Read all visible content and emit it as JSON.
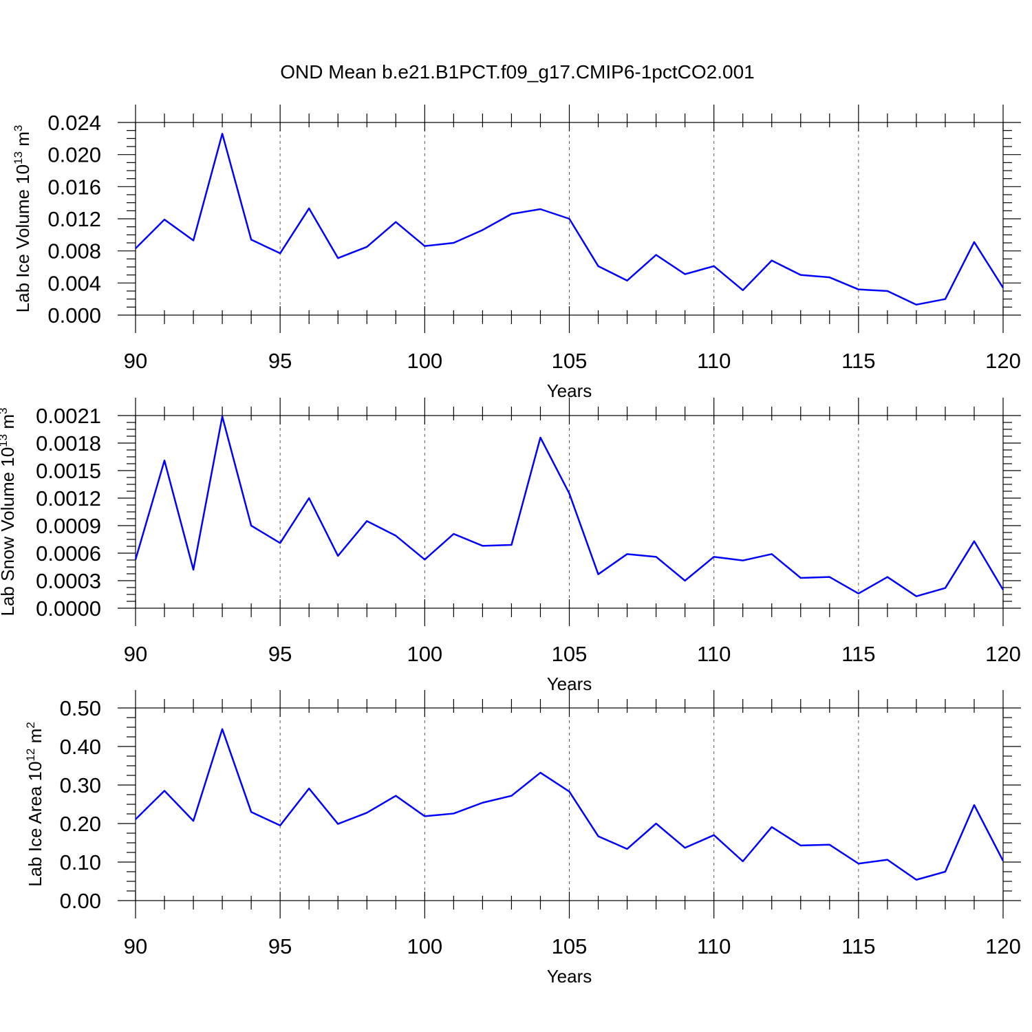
{
  "title": "OND Mean b.e21.B1PCT.f09_g17.CMIP6-1pctCO2.001",
  "colors": {
    "series": "#0000ff",
    "axis": "#000000",
    "grid": "#555555"
  },
  "chart_data": [
    {
      "type": "line",
      "ylabel": {
        "main": "Lab Ice Volume 10",
        "sup1": "13",
        "unit": " m",
        "sup2": "3"
      },
      "xlabel": "Years",
      "xlim": [
        90,
        120
      ],
      "ylim": [
        0,
        0.024
      ],
      "x_ticks": [
        "90",
        "95",
        "100",
        "105",
        "110",
        "115",
        "120"
      ],
      "y_ticks": [
        "0.000",
        "0.004",
        "0.008",
        "0.012",
        "0.016",
        "0.020",
        "0.024"
      ],
      "grid": "vertical dashed at major x ticks",
      "x": [
        90,
        91,
        92,
        93,
        94,
        95,
        96,
        97,
        98,
        99,
        100,
        101,
        102,
        103,
        104,
        105,
        106,
        107,
        108,
        109,
        110,
        111,
        112,
        113,
        114,
        115,
        116,
        117,
        118,
        119,
        120
      ],
      "series": [
        {
          "values": [
            0.0083,
            0.0119,
            0.0093,
            0.0226,
            0.0094,
            0.0077,
            0.0133,
            0.0071,
            0.0085,
            0.0116,
            0.0086,
            0.009,
            0.0106,
            0.0126,
            0.0132,
            0.012,
            0.0061,
            0.0043,
            0.0075,
            0.0051,
            0.0061,
            0.0031,
            0.0068,
            0.005,
            0.0047,
            0.0032,
            0.003,
            0.0013,
            0.002,
            0.0091,
            0.0034
          ]
        }
      ]
    },
    {
      "type": "line",
      "ylabel": {
        "main": "Lab Snow Volume 10",
        "sup1": "13",
        "unit": " m",
        "sup2": "3"
      },
      "xlabel": "Years",
      "xlim": [
        90,
        120
      ],
      "ylim": [
        0,
        0.0021
      ],
      "x_ticks": [
        "90",
        "95",
        "100",
        "105",
        "110",
        "115",
        "120"
      ],
      "y_ticks": [
        "0.0000",
        "0.0003",
        "0.0006",
        "0.0009",
        "0.0012",
        "0.0015",
        "0.0018",
        "0.0021"
      ],
      "grid": "vertical dashed at major x ticks",
      "x": [
        90,
        91,
        92,
        93,
        94,
        95,
        96,
        97,
        98,
        99,
        100,
        101,
        102,
        103,
        104,
        105,
        106,
        107,
        108,
        109,
        110,
        111,
        112,
        113,
        114,
        115,
        116,
        117,
        118,
        119,
        120
      ],
      "series": [
        {
          "values": [
            0.00053,
            0.00161,
            0.00042,
            0.00209,
            0.0009,
            0.00071,
            0.0012,
            0.00057,
            0.00095,
            0.00079,
            0.00053,
            0.00081,
            0.00068,
            0.00069,
            0.00186,
            0.00125,
            0.00037,
            0.00059,
            0.00056,
            0.0003,
            0.00056,
            0.00052,
            0.00059,
            0.00033,
            0.00034,
            0.00016,
            0.00034,
            0.00013,
            0.00022,
            0.00073,
            0.0002
          ]
        }
      ]
    },
    {
      "type": "line",
      "ylabel": {
        "main": "Lab Ice Area 10",
        "sup1": "12",
        "unit": " m",
        "sup2": "2"
      },
      "xlabel": "Years",
      "xlim": [
        90,
        120
      ],
      "ylim": [
        0,
        0.5
      ],
      "x_ticks": [
        "90",
        "95",
        "100",
        "105",
        "110",
        "115",
        "120"
      ],
      "y_ticks": [
        "0.00",
        "0.10",
        "0.20",
        "0.30",
        "0.40",
        "0.50"
      ],
      "grid": "vertical dashed at major x ticks",
      "x": [
        90,
        91,
        92,
        93,
        94,
        95,
        96,
        97,
        98,
        99,
        100,
        101,
        102,
        103,
        104,
        105,
        106,
        107,
        108,
        109,
        110,
        111,
        112,
        113,
        114,
        115,
        116,
        117,
        118,
        119,
        120
      ],
      "series": [
        {
          "values": [
            0.211,
            0.285,
            0.207,
            0.445,
            0.23,
            0.195,
            0.291,
            0.199,
            0.228,
            0.272,
            0.219,
            0.226,
            0.254,
            0.272,
            0.332,
            0.283,
            0.167,
            0.134,
            0.2,
            0.137,
            0.17,
            0.102,
            0.191,
            0.143,
            0.145,
            0.096,
            0.106,
            0.054,
            0.075,
            0.248,
            0.103
          ]
        }
      ]
    }
  ]
}
